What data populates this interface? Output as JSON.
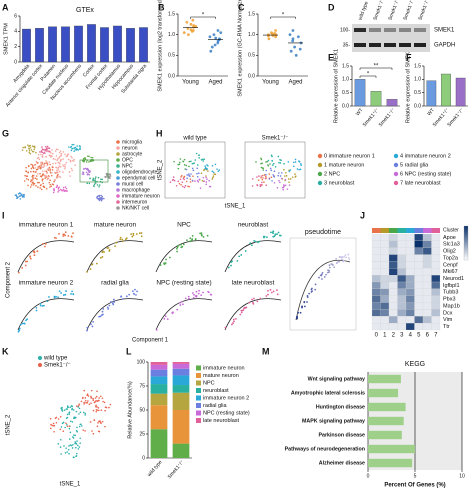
{
  "figure": {
    "panels": [
      "A",
      "B",
      "C",
      "D",
      "E",
      "F",
      "G",
      "H",
      "I",
      "J",
      "K",
      "L",
      "M"
    ],
    "blot": {
      "lanes": [
        "wild type",
        "Smek1⁻/⁻",
        "Smek1⁻/⁻",
        "Smek1⁻/⁻",
        "Smek1⁻/⁻"
      ],
      "markers": [
        "100-",
        "35-"
      ],
      "proteins": [
        "SMEK1",
        "GAPDH"
      ]
    },
    "cell_types": {
      "names": [
        "microglia",
        "neuron",
        "astrocyte",
        "OPC",
        "NPC",
        "oligodendrocyte",
        "ependymal cell",
        "mural cell",
        "macrophage",
        "immature neuron",
        "interneuron",
        "NK/NKT cell"
      ],
      "colors": [
        "#e8734a",
        "#f4a6a0",
        "#b5a640",
        "#5fae4a",
        "#3cb08c",
        "#34b4c8",
        "#4a9ad6",
        "#7a7fd8",
        "#b27ad8",
        "#de6ac8",
        "#e06a9a",
        "#999999"
      ]
    },
    "clusters": {
      "names": [
        "0 immature neuron 1",
        "1 mature neuron",
        "2 NPC",
        "3 neuroblast",
        "4 immature neuron 2",
        "5 radial glia",
        "6 NPC (resting state)",
        "7 late neuroblast"
      ],
      "colors": [
        "#e8734a",
        "#b59a2a",
        "#4aa84a",
        "#2ab0a0",
        "#2aa8d8",
        "#6a7fe0",
        "#c86ad8",
        "#e0609a"
      ]
    },
    "tsne_axes": [
      "tSNE_1",
      "tSNE_2"
    ],
    "conditions": {
      "names": [
        "wild type",
        "Smek1⁻/⁻"
      ],
      "colors": [
        "#2ab0a8",
        "#e8604a"
      ]
    },
    "pseudotime": {
      "titles": [
        "immature neuron 1",
        "mature neuron",
        "NPC",
        "neuroblast",
        "immature neuron 2",
        "radial glia",
        "NPC (resting state)",
        "late neuroblast"
      ],
      "title": "pseudotime",
      "xlabel": "Component 1",
      "ylabel": "Component 2"
    }
  },
  "chart_data": [
    {
      "type": "bar",
      "title": "GTEx",
      "ylabel": "SMEK1  TPM",
      "categories": [
        "Amygdala",
        "Anterior cingulate cortex",
        "Putamen",
        "Caudate nucleus",
        "Nucleus accumbens",
        "Cortex",
        "Frontal cortex",
        "Hypothalamus",
        "Hippocampus",
        "Substantia nigra"
      ],
      "values": [
        4.3,
        4.4,
        4.6,
        4.6,
        4.7,
        4.9,
        4.5,
        4.7,
        4.4,
        4.5
      ],
      "color": "#3a4fc4",
      "ylim": [
        0,
        6
      ],
      "yticks": [
        0,
        2,
        4,
        6
      ]
    },
    {
      "type": "strip",
      "ylabel": "SMEK1 expression (log2 transformed)",
      "categories": [
        "Young",
        "Aged"
      ],
      "points": [
        [
          1.05,
          1.2,
          1.15,
          1.3,
          1.1,
          1.25,
          1.0,
          1.18,
          1.22,
          1.12,
          1.35,
          1.08
        ],
        [
          0.9,
          0.7,
          1.0,
          0.85,
          1.1,
          0.95,
          0.8,
          0.75,
          1.05,
          0.88,
          0.6,
          0.92
        ]
      ],
      "values": [
        1.17,
        0.88
      ],
      "colors": [
        "#f0a030",
        "#3a7fc4"
      ],
      "annotation": "*",
      "ylim": [
        0,
        1.5
      ],
      "yticks": [
        {
          "value": 0,
          "label": "0.0"
        },
        {
          "value": 0.5,
          "label": "0.5"
        },
        {
          "value": 1,
          "label": "1.0"
        },
        {
          "value": 1.5,
          "label": "1.5"
        }
      ]
    },
    {
      "type": "strip",
      "ylabel": "SMEK1 expression (GC-RMA Normalized)",
      "categories": [
        "Young",
        "Aged"
      ],
      "points": [
        [
          1.0,
          0.98,
          1.02,
          1.05,
          0.95,
          1.1,
          0.9,
          1.0,
          1.03,
          0.97
        ],
        [
          0.6,
          0.9,
          0.7,
          1.1,
          0.8,
          0.5,
          0.95,
          0.65,
          1.0,
          0.85
        ]
      ],
      "values": [
        0.99,
        0.8
      ],
      "colors": [
        "#f0a030",
        "#3a7fc4"
      ],
      "annotation": "*",
      "ylim": [
        0,
        1.5
      ],
      "yticks": [
        {
          "value": 0,
          "label": "0.0"
        },
        {
          "value": 0.5,
          "label": "0.5"
        },
        {
          "value": 1,
          "label": "1.0"
        },
        {
          "value": 1.5,
          "label": "1.5"
        }
      ]
    },
    {
      "type": "bar",
      "ylabel": "Relative expression of SMEK1",
      "categories": [
        "WT",
        "Smek1⁺/⁻",
        "Smek1⁻/⁻"
      ],
      "values": [
        1.0,
        0.55,
        0.25
      ],
      "colors": [
        "#6a9ae0",
        "#8ccc7a",
        "#9a6fc8"
      ],
      "annotations": [
        "*",
        "**"
      ],
      "ylim": [
        0,
        1.5
      ],
      "yticks": [
        {
          "value": 0,
          "label": "0.0"
        },
        {
          "value": 0.5,
          "label": "0.5"
        },
        {
          "value": 1,
          "label": "1.0"
        },
        {
          "value": 1.5,
          "label": "1.5"
        }
      ]
    },
    {
      "type": "bar",
      "ylabel": "Relative expression of SMEK2",
      "categories": [
        "WT",
        "Smek1⁺/⁻",
        "Smek1⁻/⁻"
      ],
      "values": [
        0.95,
        1.2,
        1.05
      ],
      "colors": [
        "#6a9ae0",
        "#8ccc7a",
        "#9a6fc8"
      ],
      "ylim": [
        0,
        1.5
      ],
      "yticks": [
        {
          "value": 0,
          "label": "0.0"
        },
        {
          "value": 0.5,
          "label": "0.5"
        },
        {
          "value": 1,
          "label": "1.0"
        },
        {
          "value": 1.5,
          "label": "1.5"
        }
      ]
    },
    {
      "type": "heatmap",
      "title": "Cluster",
      "x": [
        0,
        1,
        2,
        3,
        4,
        5,
        6,
        7
      ],
      "rows": [
        "Apoe",
        "Slc1a3",
        "Olig2",
        "Top2a",
        "Cenpf",
        "Mki67",
        "Neurod1",
        "Igfbpl1",
        "Tubb3",
        "Pbx3",
        "Map1b",
        "Dcx",
        "Vim",
        "Ttr"
      ],
      "values": [
        [
          0.1,
          0.1,
          0.2,
          0.1,
          0.1,
          0.9,
          0.3,
          0.1
        ],
        [
          0.1,
          0.1,
          0.3,
          0.1,
          0.1,
          1.0,
          0.6,
          0.1
        ],
        [
          0.1,
          0.1,
          0.2,
          0.1,
          0.1,
          0.6,
          0.8,
          0.1
        ],
        [
          0.1,
          0.1,
          0.9,
          0.2,
          0.1,
          0.1,
          0.2,
          0.1
        ],
        [
          0.1,
          0.1,
          0.8,
          0.2,
          0.1,
          0.1,
          0.2,
          0.1
        ],
        [
          0.1,
          0.1,
          0.9,
          0.3,
          0.1,
          0.1,
          0.1,
          0.1
        ],
        [
          0.3,
          0.2,
          0.2,
          0.8,
          0.4,
          0.1,
          0.1,
          0.9
        ],
        [
          0.5,
          0.2,
          0.1,
          0.6,
          0.4,
          0.1,
          0.1,
          0.7
        ],
        [
          0.6,
          0.5,
          0.1,
          0.4,
          0.5,
          0.1,
          0.1,
          0.3
        ],
        [
          0.7,
          0.4,
          0.1,
          0.3,
          0.6,
          0.1,
          0.1,
          0.2
        ],
        [
          0.6,
          0.7,
          0.1,
          0.3,
          0.5,
          0.1,
          0.1,
          0.2
        ],
        [
          0.7,
          0.6,
          0.1,
          0.4,
          0.6,
          0.1,
          0.1,
          0.3
        ],
        [
          0.1,
          0.1,
          0.4,
          0.1,
          0.1,
          0.7,
          0.3,
          0.1
        ],
        [
          0.1,
          0.1,
          0.1,
          0.1,
          0.9,
          0.1,
          0.1,
          0.1
        ]
      ],
      "clim": [
        0,
        1
      ],
      "colors": [
        "#ffffff",
        "#08306b"
      ]
    },
    {
      "type": "stacked",
      "ylabel": "Relative Abundance(%)",
      "categories": [
        "wild type",
        "Smek1⁻/⁻"
      ],
      "series": [
        {
          "name": "immature neuron",
          "color": "#5fae4a",
          "values": [
            30,
            15
          ]
        },
        {
          "name": "mature neuron",
          "color": "#e8943a",
          "values": [
            25,
            35
          ]
        },
        {
          "name": "NPC",
          "color": "#b5a640",
          "values": [
            12,
            18
          ]
        },
        {
          "name": "neuroblast",
          "color": "#2ab0a0",
          "values": [
            10,
            8
          ]
        },
        {
          "name": "immature neuron 2",
          "color": "#2aa8d8",
          "values": [
            8,
            10
          ]
        },
        {
          "name": "radial glia",
          "color": "#6a7fe0",
          "values": [
            7,
            7
          ]
        },
        {
          "name": "NPC (resting state)",
          "color": "#c86ad8",
          "values": [
            5,
            5
          ]
        },
        {
          "name": "late neuroblast",
          "color": "#e0609a",
          "values": [
            3,
            2
          ]
        }
      ],
      "ylim": [
        0,
        100
      ],
      "yticks": [
        0,
        25,
        50,
        75,
        100
      ]
    },
    {
      "type": "hbar",
      "title": "KEGG",
      "xlabel": "Percent Of Genes (%)",
      "categories": [
        "Wnt signaling pathway",
        "Amyotrophic lateral sclerosis",
        "Huntington disease",
        "MAPK signaling pathway",
        "Parkinson disease",
        "Pathways of neurodegeneration",
        "Alzheimer disease"
      ],
      "values": [
        3.5,
        3.2,
        4.0,
        3.8,
        3.6,
        5.0,
        4.7
      ],
      "color": "#9ed08a",
      "xlim": [
        0,
        10
      ],
      "xticks": [
        0,
        5,
        10
      ],
      "grid": true
    }
  ]
}
